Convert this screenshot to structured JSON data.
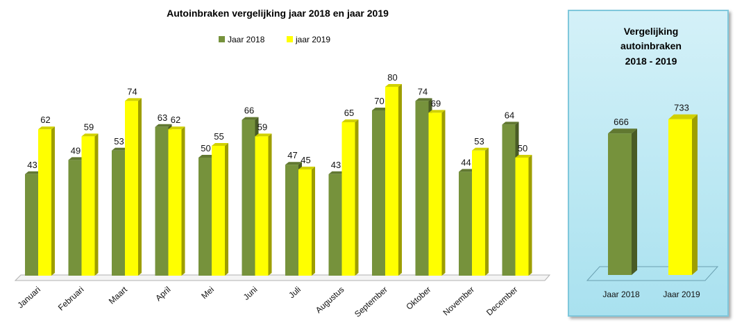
{
  "chart_data": [
    {
      "type": "bar",
      "title": "Autoinbraken vergelijking jaar 2018 en jaar 2019",
      "categories": [
        "Januari",
        "Februari",
        "Maart",
        "April",
        "Mei",
        "Juni",
        "Juli",
        "Augustus",
        "September",
        "Oktober",
        "November",
        "December"
      ],
      "series": [
        {
          "name": "Jaar 2018",
          "color": "#76923c",
          "values": [
            43,
            49,
            53,
            63,
            50,
            66,
            47,
            43,
            70,
            74,
            44,
            64
          ]
        },
        {
          "name": "jaar 2019",
          "color": "#ffff00",
          "values": [
            62,
            59,
            74,
            62,
            55,
            59,
            45,
            65,
            80,
            69,
            53,
            50
          ]
        }
      ],
      "legend": "top",
      "ylim": [
        0,
        90
      ],
      "grid": false,
      "style": "3d"
    },
    {
      "type": "bar",
      "title": "Vergelijking autoinbraken 2018 - 2019",
      "title_lines": [
        "Vergelijking",
        "autoinbraken",
        "2018 - 2019"
      ],
      "categories": [
        "Jaar 2018",
        "Jaar 2019"
      ],
      "values": [
        666,
        733
      ],
      "colors": [
        "#76923c",
        "#ffff00"
      ],
      "ylim": [
        0,
        900
      ],
      "grid": false,
      "style": "3d"
    }
  ]
}
